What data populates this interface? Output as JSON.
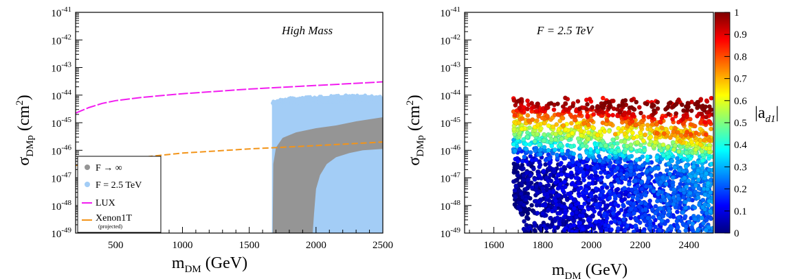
{
  "chart_data": [
    {
      "type": "scatter",
      "annotation": "High Mass",
      "xlabel": "m_DM (GeV)",
      "ylabel": "σ_DMp (cm²)",
      "xlim": [
        200,
        2500
      ],
      "ylim": [
        -49,
        -41
      ],
      "yscale": "log",
      "xticks": [
        500,
        1000,
        1500,
        2000,
        2500
      ],
      "xtick_labels": [
        "500",
        "1000",
        "1500",
        "2000",
        "2500"
      ],
      "yticks": [
        -49,
        -48,
        -47,
        -46,
        -45,
        -44,
        -43,
        -42,
        -41
      ],
      "legend_position": "bottom-left",
      "series": [
        {
          "name": "F = 2.5 TeV",
          "kind": "filled-region",
          "color": "#a3cdf6",
          "x_range": [
            1670,
            2500
          ],
          "lower_log10": -49,
          "upper_log10": [
            [
              1670,
              -44.2
            ],
            [
              1800,
              -44.1
            ],
            [
              2000,
              -44.05
            ],
            [
              2200,
              -44.0
            ],
            [
              2400,
              -44.0
            ],
            [
              2500,
              -44.05
            ]
          ]
        },
        {
          "name": "F → ∞",
          "kind": "filled-band",
          "color": "#959595",
          "x_min": 1670,
          "lower_edge": [
            [
              1975,
              -49
            ],
            [
              1985,
              -48.3
            ],
            [
              2000,
              -47.4
            ],
            [
              2030,
              -46.9
            ],
            [
              2080,
              -46.5
            ],
            [
              2150,
              -46.25
            ],
            [
              2250,
              -46.1
            ],
            [
              2350,
              -46.0
            ],
            [
              2500,
              -45.95
            ]
          ],
          "upper_edge": [
            [
              1675,
              -49
            ],
            [
              1680,
              -46.5
            ],
            [
              1700,
              -45.9
            ],
            [
              1750,
              -45.55
            ],
            [
              1850,
              -45.35
            ],
            [
              2000,
              -45.2
            ],
            [
              2150,
              -45.1
            ],
            [
              2300,
              -44.95
            ],
            [
              2500,
              -44.8
            ]
          ]
        },
        {
          "name": "LUX",
          "kind": "dashed-line",
          "color": "#f21bf0",
          "points": [
            [
              200,
              -44.65
            ],
            [
              300,
              -44.45
            ],
            [
              400,
              -44.3
            ],
            [
              500,
              -44.2
            ],
            [
              700,
              -44.08
            ],
            [
              1000,
              -43.95
            ],
            [
              1500,
              -43.78
            ],
            [
              2000,
              -43.65
            ],
            [
              2500,
              -43.52
            ]
          ]
        },
        {
          "name": "Xenon1T",
          "name_note": "(projected)",
          "kind": "dashed-line",
          "color": "#f39418",
          "points": [
            [
              200,
              -46.55
            ],
            [
              350,
              -46.45
            ],
            [
              500,
              -46.35
            ],
            [
              800,
              -46.2
            ],
            [
              1000,
              -46.1
            ],
            [
              1500,
              -45.95
            ],
            [
              2000,
              -45.83
            ],
            [
              2500,
              -45.7
            ]
          ]
        }
      ]
    },
    {
      "type": "scatter",
      "annotation": "F = 2.5 TeV",
      "xlabel": "m_DM (GeV)",
      "ylabel": "σ_DMp (cm²)",
      "xlim": [
        1480,
        2500
      ],
      "ylim": [
        -49,
        -41
      ],
      "yscale": "log",
      "xticks": [
        1600,
        1800,
        2000,
        2200,
        2400
      ],
      "xtick_labels": [
        "1600",
        "1800",
        "2000",
        "2200",
        "2400"
      ],
      "yticks": [
        -49,
        -48,
        -47,
        -46,
        -45,
        -44,
        -43,
        -42,
        -41
      ],
      "colorbar": {
        "label": "|a_d1|",
        "range": [
          0,
          1
        ],
        "ticks": [
          "0",
          "0.1",
          "0.2",
          "0.3",
          "0.4",
          "0.5",
          "0.6",
          "0.7",
          "0.8",
          "0.9",
          "1"
        ],
        "colormap": [
          "#00007f",
          "#0000ff",
          "#007fff",
          "#00ffff",
          "#7fff7f",
          "#ffff00",
          "#ff7f00",
          "#ff0000",
          "#7f0000"
        ]
      },
      "scatter_summary": {
        "x_range": [
          1680,
          2500
        ],
        "log10_y_range": [
          -49,
          -44.15
        ],
        "value_description": "|a_d1| near 1 at top edge (≈1e-44), decreasing to ~0 at low cross-section; higher masses show larger values"
      }
    }
  ]
}
